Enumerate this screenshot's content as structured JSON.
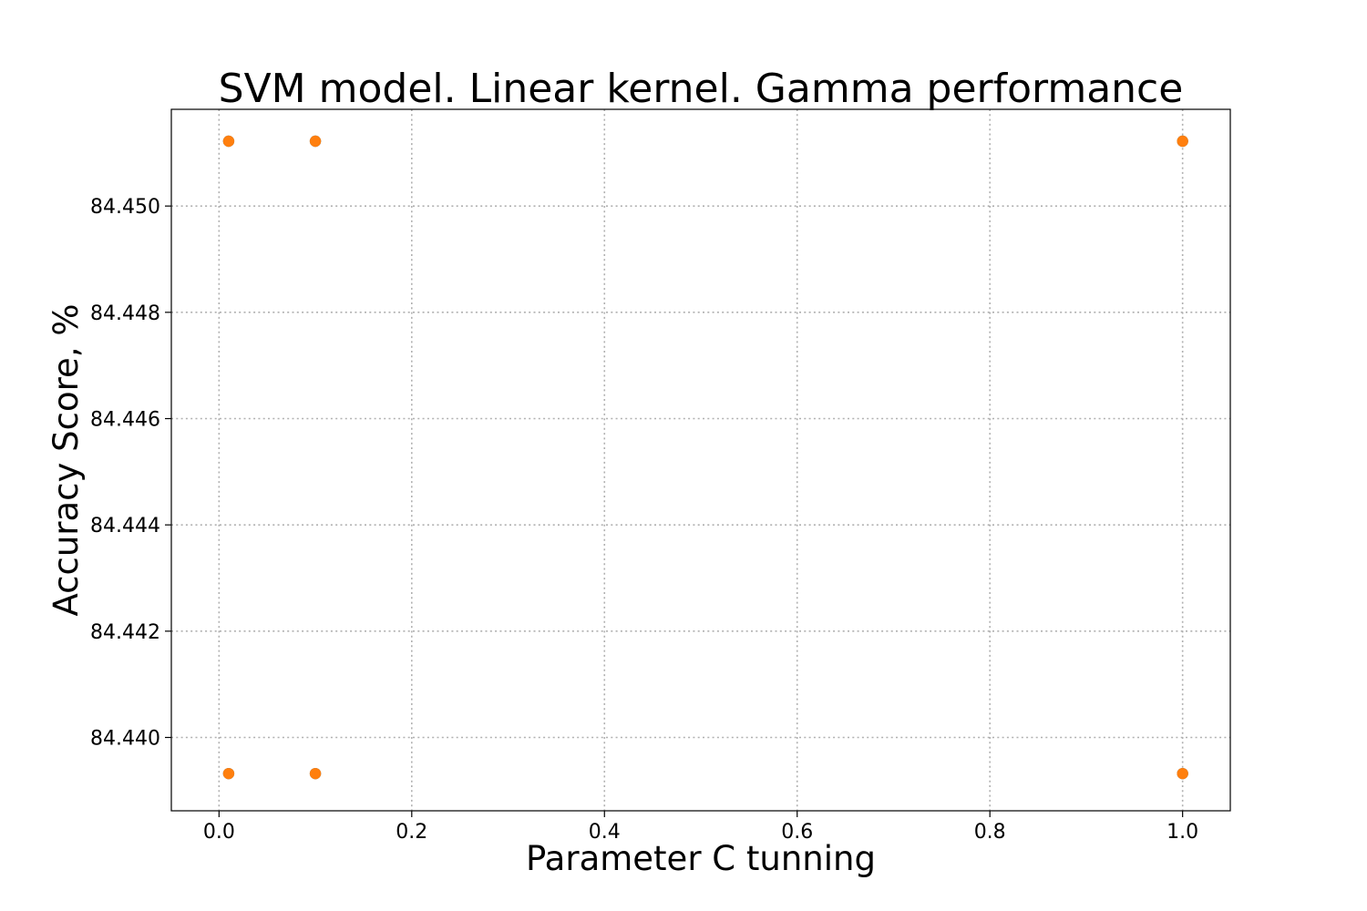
{
  "chart_data": {
    "type": "scatter",
    "title": "SVM model. Linear kernel. Gamma performance",
    "xlabel": "Parameter C tunning",
    "ylabel": "Accuracy Score, %",
    "xlim": [
      -0.0495,
      1.0495
    ],
    "ylim": [
      84.43862,
      84.45182
    ],
    "grid": true,
    "xticks": [
      "0.0",
      "0.2",
      "0.4",
      "0.6",
      "0.8",
      "1.0"
    ],
    "yticks": [
      "84.440",
      "84.442",
      "84.444",
      "84.446",
      "84.448",
      "84.450"
    ],
    "series": [
      {
        "color": "#1f77b4",
        "x": [
          0.01,
          0.1,
          1.0,
          0.01,
          0.1,
          1.0
        ],
        "y": [
          84.45122,
          84.45122,
          84.45122,
          84.43932,
          84.43932,
          84.43932
        ]
      },
      {
        "color": "#ff7f0e",
        "x": [
          0.01,
          0.1,
          1.0,
          0.01,
          0.1,
          1.0
        ],
        "y": [
          84.45122,
          84.45122,
          84.45122,
          84.43932,
          84.43932,
          84.43932
        ]
      }
    ]
  }
}
